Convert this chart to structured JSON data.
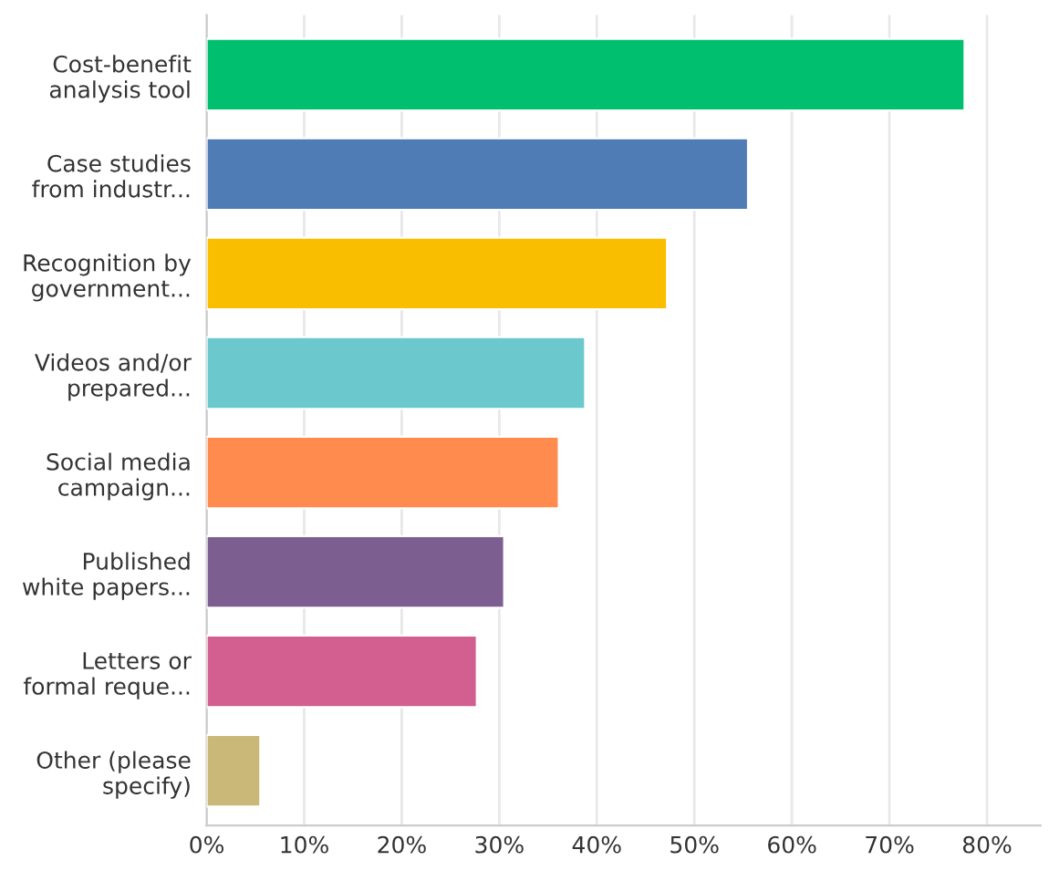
{
  "chart_data": {
    "type": "bar",
    "orientation": "horizontal",
    "categories": [
      "Cost-benefit\nanalysis tool",
      "Case studies\nfrom industr...",
      "Recognition by\ngovernment...",
      "Videos and/or\nprepared...",
      "Social media\ncampaign...",
      "Published\nwhite papers...",
      "Letters or\nformal reque...",
      "Other (please\nspecify)"
    ],
    "values": [
      77.7,
      55.5,
      47.2,
      38.8,
      36.1,
      30.5,
      27.7,
      5.5
    ],
    "colors": [
      "#00bf6f",
      "#507cb6",
      "#f9be00",
      "#6bc8cd",
      "#ff8b4f",
      "#7d5e90",
      "#d25f90",
      "#c9b877"
    ],
    "xlim": [
      0,
      85.5
    ],
    "xticks": [
      {
        "value": 0,
        "label": "0%"
      },
      {
        "value": 10,
        "label": "10%"
      },
      {
        "value": 20,
        "label": "20%"
      },
      {
        "value": 30,
        "label": "30%"
      },
      {
        "value": 40,
        "label": "40%"
      },
      {
        "value": 50,
        "label": "50%"
      },
      {
        "value": 60,
        "label": "60%"
      },
      {
        "value": 70,
        "label": "70%"
      },
      {
        "value": 80,
        "label": "80%"
      }
    ],
    "grid": "x"
  }
}
